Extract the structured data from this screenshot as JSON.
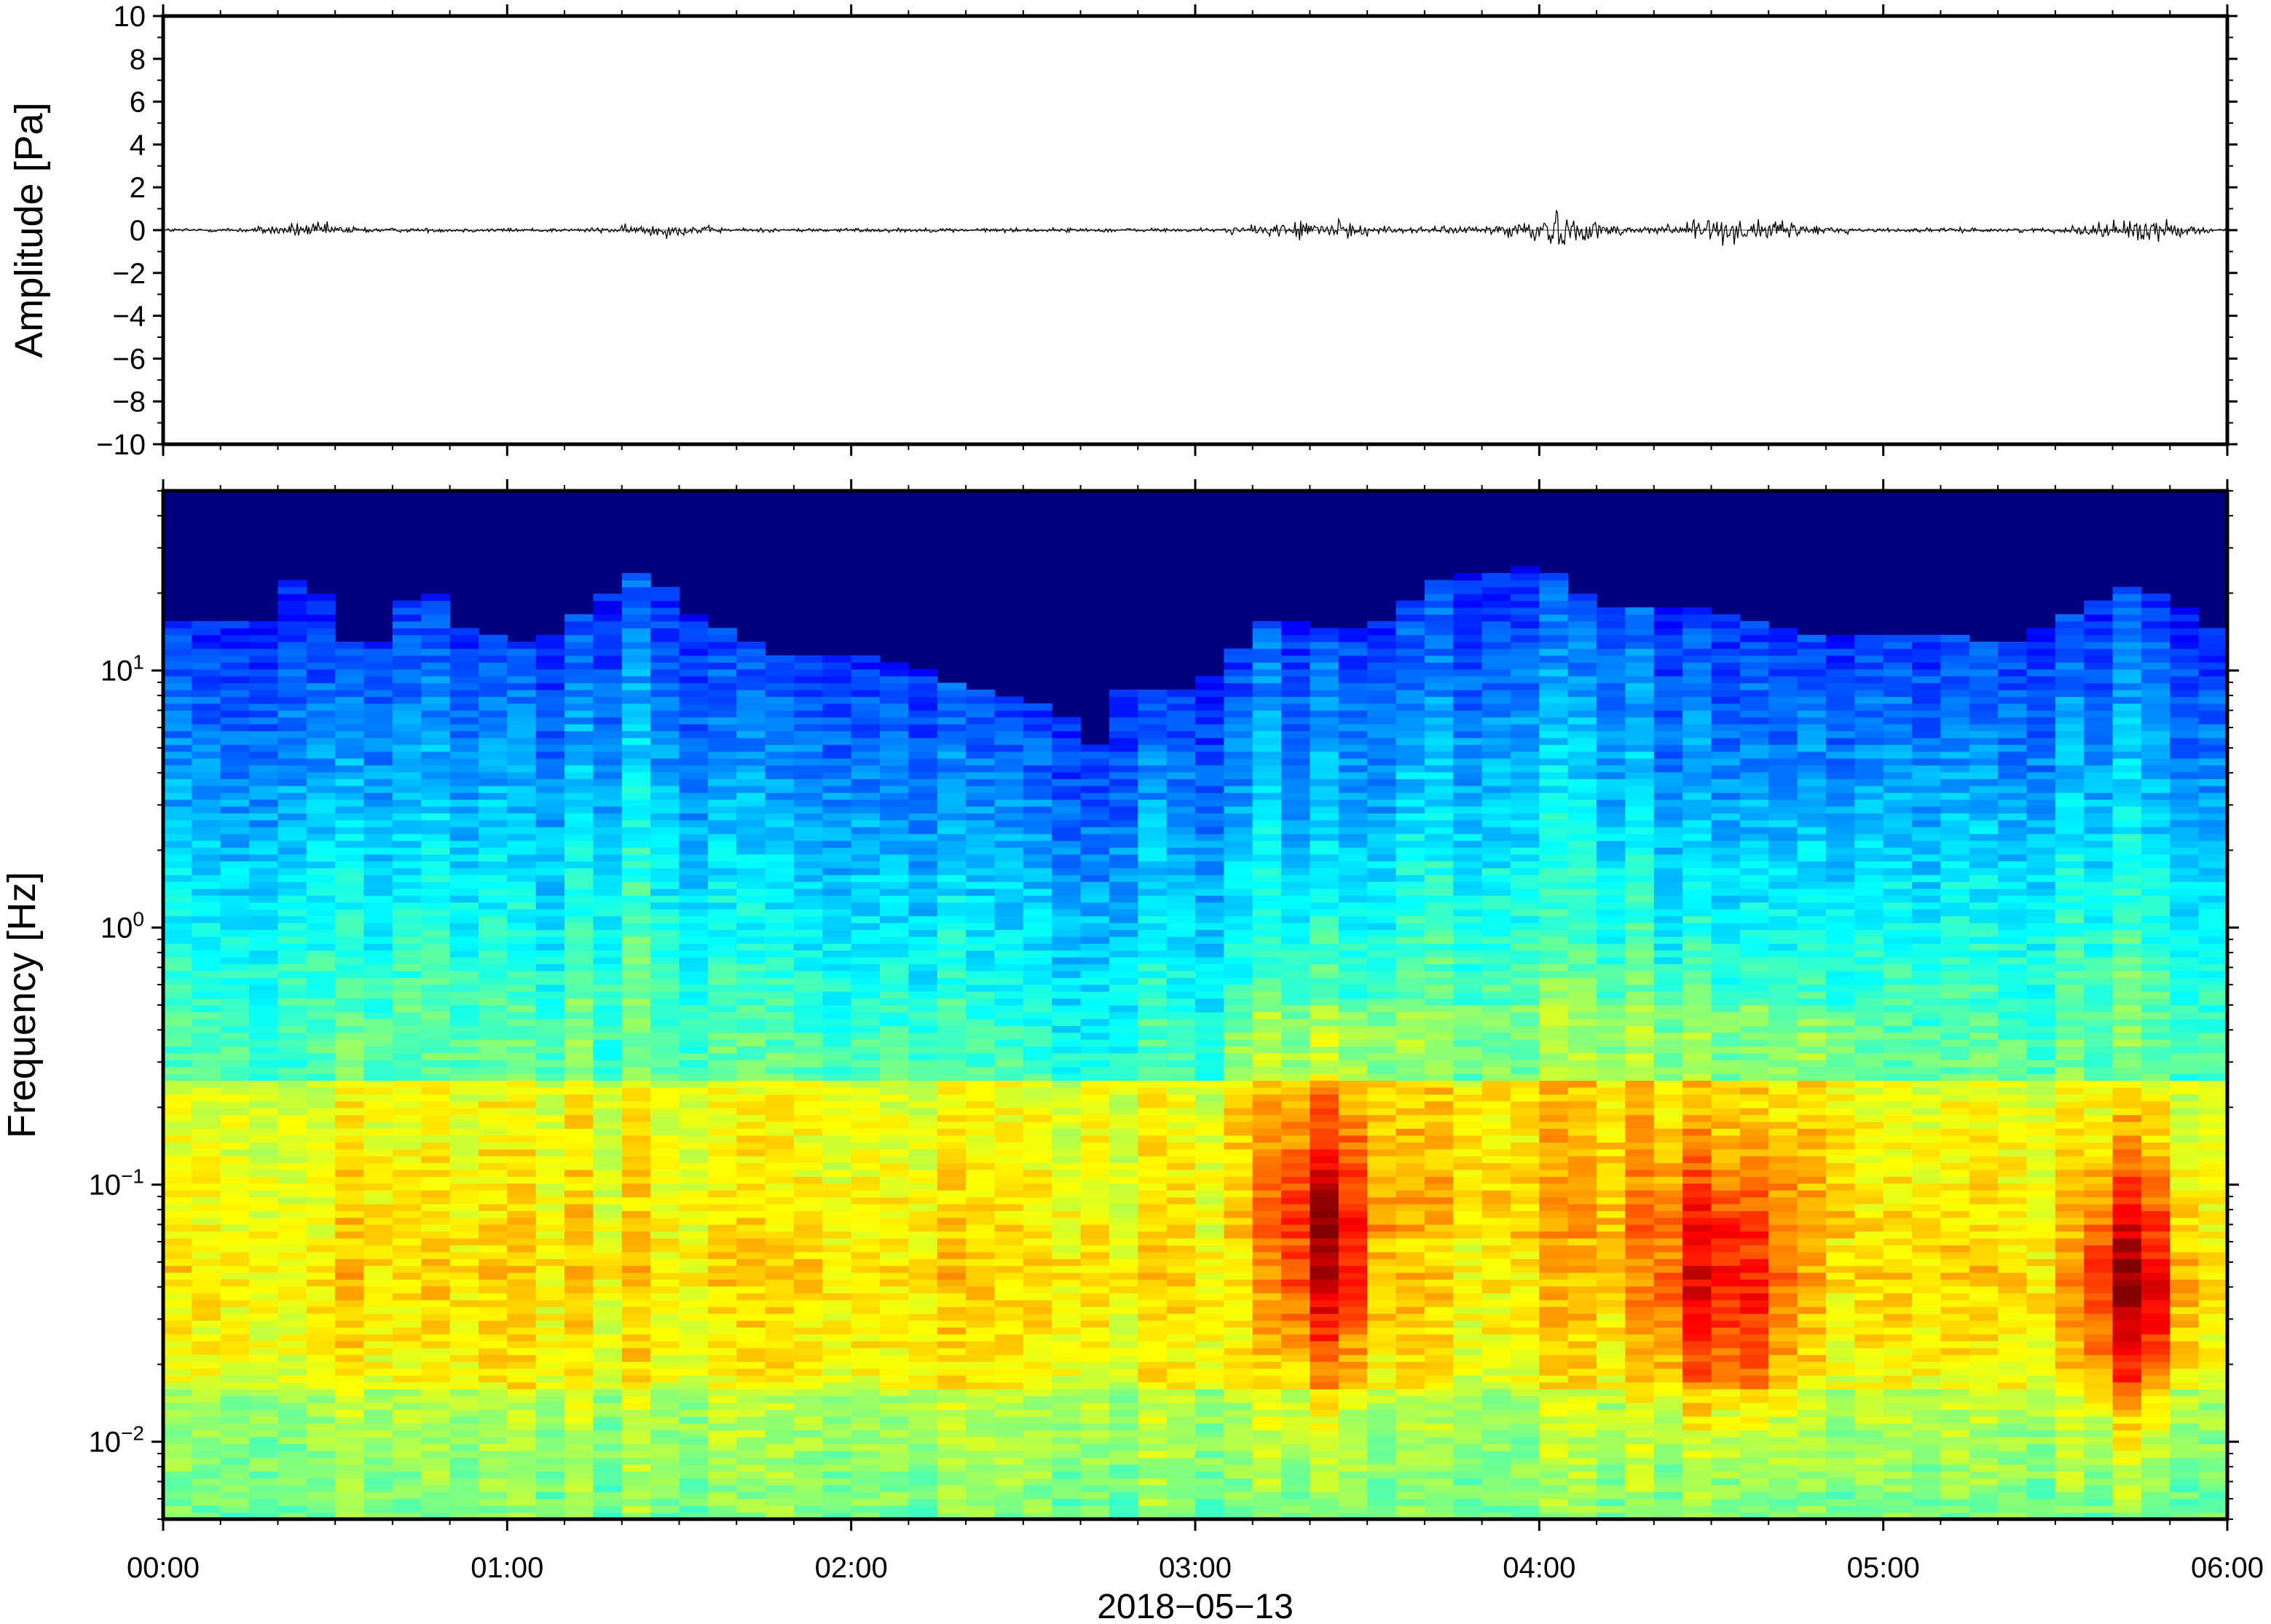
{
  "chart_data": [
    {
      "type": "line",
      "panel": "waveform",
      "ylabel": "Amplitude [Pa]",
      "ylim": [
        -10,
        10
      ],
      "yticks": [
        10,
        8,
        6,
        4,
        2,
        0,
        -2,
        -4,
        -6,
        -8,
        -10
      ],
      "ytick_labels": [
        "10",
        "8",
        "6",
        "4",
        "2",
        "0",
        "−2",
        "−4",
        "−6",
        "−8",
        "−10"
      ],
      "xlim_hours": [
        0,
        6
      ],
      "grid": false,
      "series": [
        {
          "values": "pressure trace centered at 0 Pa, typical amplitude about ±0.2 Pa",
          "bursts": [
            {
              "t_hours": 0.42,
              "peak_pa": 0.45
            },
            {
              "t_hours": 1.45,
              "peak_pa": 0.4
            },
            {
              "t_hours": 3.35,
              "peak_pa": 0.55
            },
            {
              "t_hours": 4.03,
              "peak_pa": 1.0
            },
            {
              "t_hours": 4.47,
              "peak_pa": 0.6
            },
            {
              "t_hours": 4.65,
              "peak_pa": 0.45
            },
            {
              "t_hours": 5.73,
              "peak_pa": 0.8
            }
          ]
        }
      ]
    },
    {
      "type": "heatmap",
      "panel": "spectrogram",
      "ylabel": "Frequency [Hz]",
      "yscale": "log",
      "ylim": [
        0.005,
        50
      ],
      "yticks": [
        10,
        1,
        0.1,
        0.01
      ],
      "ytick_labels": [
        {
          "base": "10",
          "exp": "1"
        },
        {
          "base": "10",
          "exp": "0"
        },
        {
          "base": "10",
          "exp": "−1"
        },
        {
          "base": "10",
          "exp": "−2"
        }
      ],
      "colormap": "jet",
      "colors": {
        "low": "#00007f",
        "mid": "#7dfa7a",
        "high": "#ff2a00"
      },
      "xlim_hours": [
        0,
        6
      ],
      "xticks_hours": [
        0,
        1,
        2,
        3,
        4,
        5,
        6
      ],
      "xtick_labels": [
        "00:00",
        "01:00",
        "02:00",
        "03:00",
        "04:00",
        "05:00",
        "06:00"
      ],
      "xlabel": "2018−05−13",
      "description_values": {
        "dark_cutoff_hz_by_hour": [
          [
            0.0,
            15
          ],
          [
            0.3,
            16
          ],
          [
            0.42,
            28
          ],
          [
            0.5,
            14
          ],
          [
            0.6,
            12
          ],
          [
            0.75,
            22
          ],
          [
            0.9,
            14
          ],
          [
            1.1,
            13
          ],
          [
            1.4,
            26
          ],
          [
            1.55,
            16
          ],
          [
            1.8,
            11
          ],
          [
            2.0,
            12
          ],
          [
            2.3,
            9
          ],
          [
            2.6,
            7
          ],
          [
            2.7,
            5
          ],
          [
            2.8,
            9
          ],
          [
            3.0,
            8
          ],
          [
            3.2,
            16
          ],
          [
            3.5,
            14
          ],
          [
            3.75,
            24
          ],
          [
            4.0,
            25
          ],
          [
            4.2,
            18
          ],
          [
            4.5,
            17
          ],
          [
            4.8,
            14
          ],
          [
            5.1,
            14
          ],
          [
            5.4,
            13
          ],
          [
            5.72,
            22
          ],
          [
            6.0,
            14
          ]
        ],
        "hot_events": [
          {
            "t_hours": 3.38,
            "f_hz": 0.06,
            "level": 0.86
          },
          {
            "t_hours": 4.45,
            "f_hz": 0.04,
            "level": 0.8
          },
          {
            "t_hours": 4.63,
            "f_hz": 0.035,
            "level": 0.78
          },
          {
            "t_hours": 5.72,
            "f_hz": 0.04,
            "level": 0.88
          }
        ]
      }
    }
  ]
}
